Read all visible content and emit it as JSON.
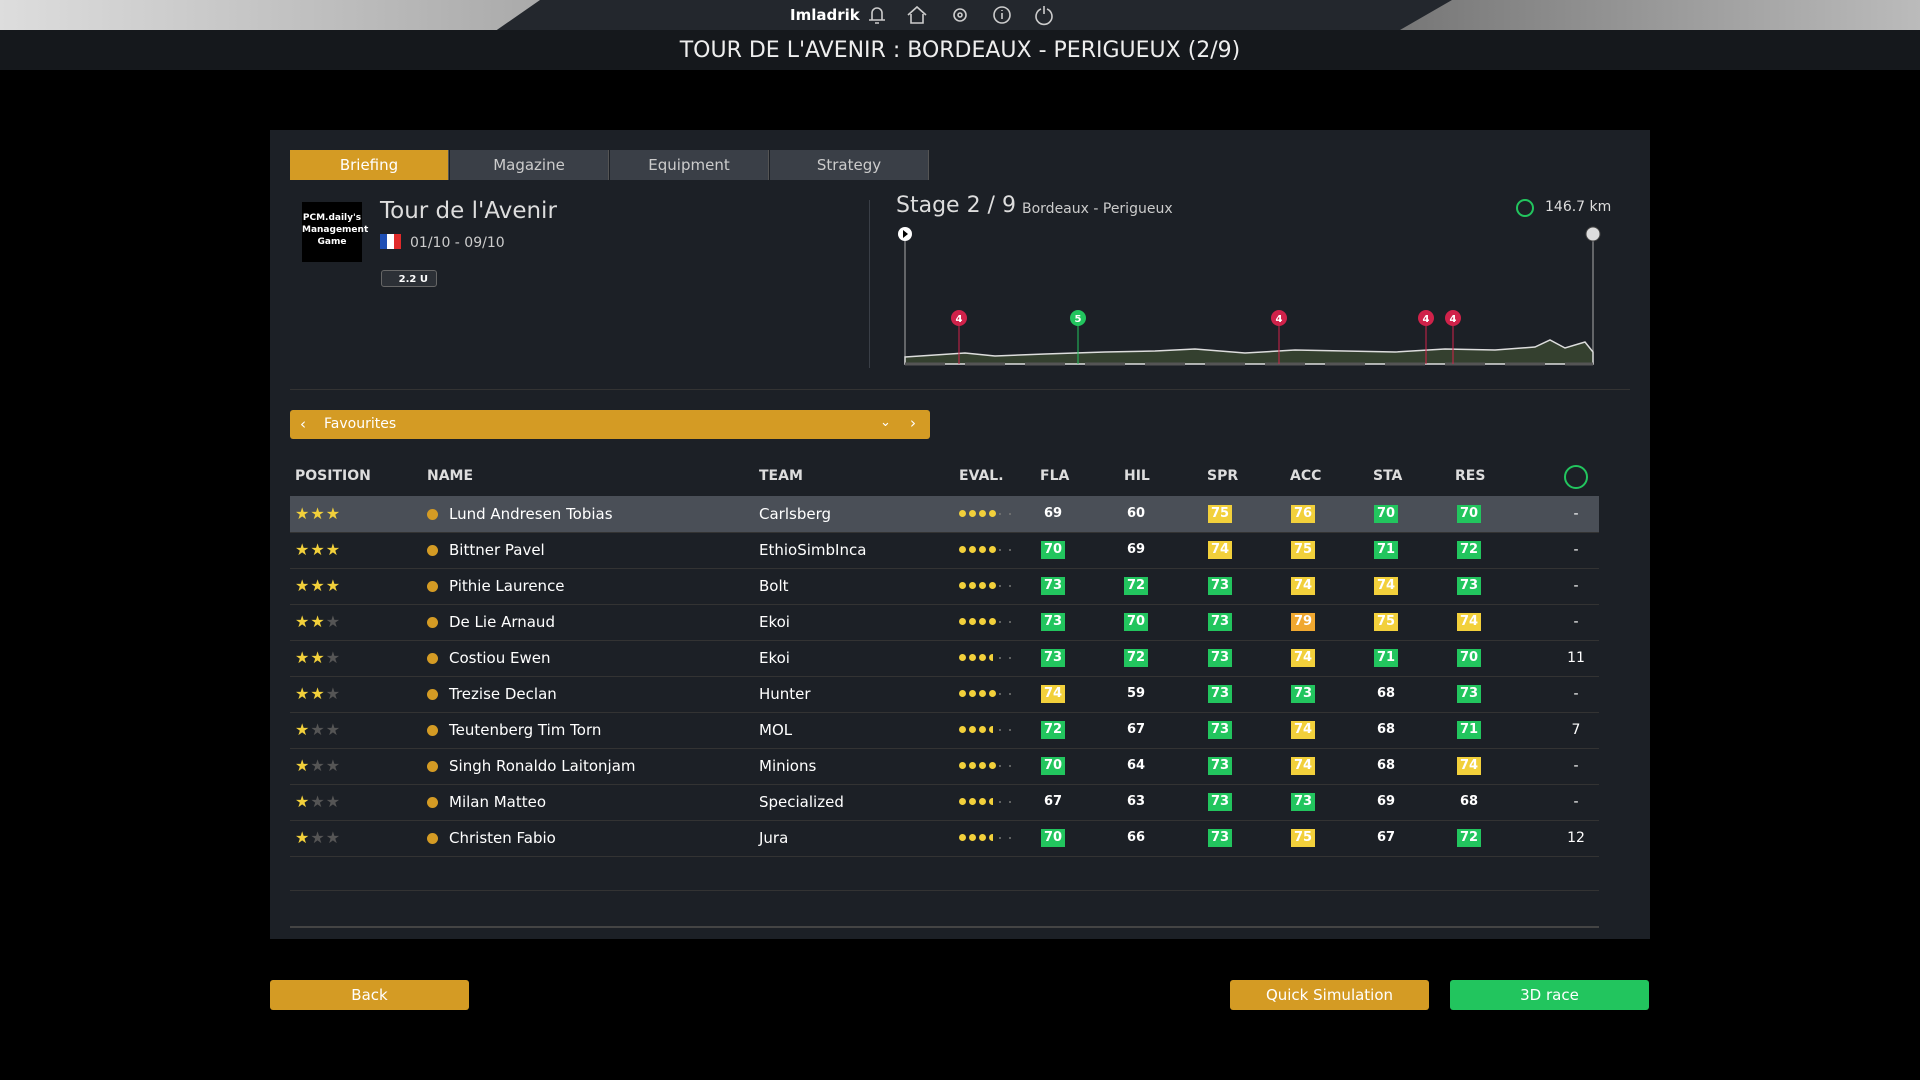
{
  "header": {
    "user": "Imladrik",
    "title": "TOUR DE L'AVENIR : BORDEAUX - PERIGUEUX (2/9)"
  },
  "tabs": [
    "Briefing",
    "Magazine",
    "Equipment",
    "Strategy"
  ],
  "race": {
    "logo": "PCM.daily's Management Game",
    "name": "Tour de l'Avenir",
    "dates": "01/10 - 09/10",
    "class": "2.2 U"
  },
  "stage": {
    "label": "Stage 2 / 9",
    "route": "Bordeaux - Perigueux",
    "distance": "146.7 km",
    "climbs": [
      "4",
      "5",
      "4",
      "4",
      "4"
    ]
  },
  "filter": "Favourites",
  "table": {
    "columns": [
      "POSITION",
      "NAME",
      "TEAM",
      "EVAL.",
      "FLA",
      "HIL",
      "SPR",
      "ACC",
      "STA",
      "RES"
    ],
    "colors": {
      "g": "#22c55e",
      "y": "#f2d03b",
      "o": "#f0a830"
    },
    "rows": [
      {
        "stars": 3,
        "name": "Lund Andresen Tobias",
        "team": "Carlsberg",
        "eval": 4,
        "stats": [
          69,
          60,
          75,
          76,
          70,
          70
        ],
        "grades": [
          null,
          null,
          "y",
          "y",
          "g",
          "g"
        ],
        "last": "-"
      },
      {
        "stars": 3,
        "name": "Bittner Pavel",
        "team": "EthioSimbInca",
        "eval": 4,
        "stats": [
          70,
          69,
          74,
          75,
          71,
          72
        ],
        "grades": [
          "g",
          null,
          "y",
          "y",
          "g",
          "g"
        ],
        "last": "-"
      },
      {
        "stars": 3,
        "name": "Pithie Laurence",
        "team": "Bolt",
        "eval": 4,
        "stats": [
          73,
          72,
          73,
          74,
          74,
          73
        ],
        "grades": [
          "g",
          "g",
          "g",
          "y",
          "y",
          "g"
        ],
        "last": "-"
      },
      {
        "stars": 2,
        "name": "De Lie Arnaud",
        "team": "Ekoi",
        "eval": 4,
        "stats": [
          73,
          70,
          73,
          79,
          75,
          74
        ],
        "grades": [
          "g",
          "g",
          "g",
          "o",
          "y",
          "y"
        ],
        "last": "-"
      },
      {
        "stars": 2,
        "name": "Costiou Ewen",
        "team": "Ekoi",
        "eval": 3.5,
        "stats": [
          73,
          72,
          73,
          74,
          71,
          70
        ],
        "grades": [
          "g",
          "g",
          "g",
          "y",
          "g",
          "g"
        ],
        "last": "11"
      },
      {
        "stars": 2,
        "name": "Trezise Declan",
        "team": "Hunter",
        "eval": 4,
        "stats": [
          74,
          59,
          73,
          73,
          68,
          73
        ],
        "grades": [
          "y",
          null,
          "g",
          "g",
          null,
          "g"
        ],
        "last": "-"
      },
      {
        "stars": 1,
        "name": "Teutenberg Tim Torn",
        "team": "MOL",
        "eval": 3.5,
        "stats": [
          72,
          67,
          73,
          74,
          68,
          71
        ],
        "grades": [
          "g",
          null,
          "g",
          "y",
          null,
          "g"
        ],
        "last": "7"
      },
      {
        "stars": 1,
        "name": "Singh Ronaldo Laitonjam",
        "team": "Minions",
        "eval": 4,
        "stats": [
          70,
          64,
          73,
          74,
          68,
          74
        ],
        "grades": [
          "g",
          null,
          "g",
          "y",
          null,
          "y"
        ],
        "last": "-"
      },
      {
        "stars": 1,
        "name": "Milan Matteo",
        "team": "Specialized",
        "eval": 3.5,
        "stats": [
          67,
          63,
          73,
          73,
          69,
          68
        ],
        "grades": [
          null,
          null,
          "g",
          "g",
          null,
          null
        ],
        "last": "-"
      },
      {
        "stars": 1,
        "name": "Christen Fabio",
        "team": "Jura",
        "eval": 3.5,
        "stats": [
          70,
          66,
          73,
          75,
          67,
          72
        ],
        "grades": [
          "g",
          null,
          "g",
          "y",
          null,
          "g"
        ],
        "last": "12"
      }
    ]
  },
  "buttons": [
    "Back",
    "Quick Simulation",
    "3D race"
  ]
}
